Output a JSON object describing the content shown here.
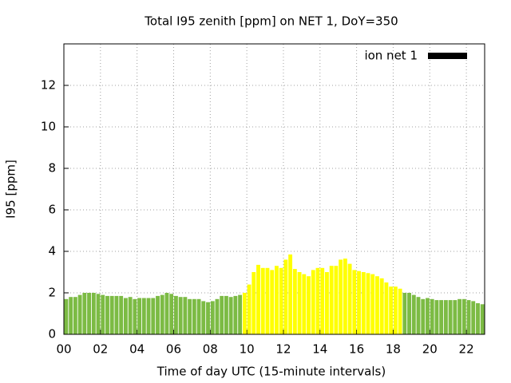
{
  "chart_data": {
    "type": "bar",
    "title": "Total I95 zenith [ppm] on NET 1, DoY=350",
    "x_label": "Time of day UTC (15-minute intervals)",
    "y_label": "I95 [ppm]",
    "series": [
      {
        "name": "ion net 1",
        "color": "#000000",
        "x": [
          0,
          0.25,
          0.5,
          0.75,
          1,
          1.25,
          1.5,
          1.75,
          2,
          2.25,
          2.5,
          2.75,
          3,
          3.25,
          3.5,
          3.75,
          4,
          4.25,
          4.5,
          4.75,
          5,
          5.25,
          5.5,
          5.75,
          6,
          6.25,
          6.5,
          6.75,
          7,
          7.25,
          7.5,
          7.75,
          8,
          8.25,
          8.5,
          8.75,
          9,
          9.25,
          9.5,
          9.75,
          10,
          10.25,
          10.5,
          10.75,
          11,
          11.25,
          11.5,
          11.75,
          12,
          12.25,
          12.5,
          12.75,
          13,
          13.25,
          13.5,
          13.75,
          14,
          14.25,
          14.5,
          14.75,
          15,
          15.25,
          15.5,
          15.75,
          16,
          16.25,
          16.5,
          16.75,
          17,
          17.25,
          17.5,
          17.75,
          18,
          18.25,
          18.5,
          18.75,
          19,
          19.25,
          19.5,
          19.75,
          20,
          20.25,
          20.5,
          20.75,
          21,
          21.25,
          21.5,
          21.75,
          22,
          22.25,
          22.5,
          22.75
        ],
        "values": [
          1.7,
          1.8,
          1.8,
          1.9,
          2.0,
          2.0,
          2.0,
          1.95,
          1.9,
          1.85,
          1.85,
          1.85,
          1.85,
          1.75,
          1.8,
          1.7,
          1.75,
          1.75,
          1.75,
          1.75,
          1.85,
          1.9,
          2.0,
          1.95,
          1.85,
          1.8,
          1.8,
          1.7,
          1.7,
          1.7,
          1.6,
          1.55,
          1.6,
          1.7,
          1.85,
          1.85,
          1.8,
          1.85,
          1.9,
          2.0,
          2.4,
          3.0,
          3.35,
          3.2,
          3.2,
          3.1,
          3.3,
          3.2,
          3.6,
          3.85,
          3.15,
          3.0,
          2.9,
          2.8,
          3.1,
          3.2,
          3.2,
          3.0,
          3.3,
          3.3,
          3.6,
          3.65,
          3.4,
          3.1,
          3.05,
          3.0,
          2.95,
          2.9,
          2.8,
          2.7,
          2.5,
          2.3,
          2.3,
          2.2,
          2.0,
          2.0,
          1.9,
          1.8,
          1.7,
          1.75,
          1.7,
          1.65,
          1.65,
          1.65,
          1.65,
          1.65,
          1.7,
          1.7,
          1.65,
          1.6,
          1.5,
          1.45
        ],
        "colors": [
          "#7cbb44",
          "#7cbb44",
          "#7cbb44",
          "#7cbb44",
          "#7cbb44",
          "#7cbb44",
          "#7cbb44",
          "#7cbb44",
          "#7cbb44",
          "#7cbb44",
          "#7cbb44",
          "#7cbb44",
          "#7cbb44",
          "#7cbb44",
          "#7cbb44",
          "#7cbb44",
          "#7cbb44",
          "#7cbb44",
          "#7cbb44",
          "#7cbb44",
          "#7cbb44",
          "#7cbb44",
          "#7cbb44",
          "#7cbb44",
          "#7cbb44",
          "#7cbb44",
          "#7cbb44",
          "#7cbb44",
          "#7cbb44",
          "#7cbb44",
          "#7cbb44",
          "#7cbb44",
          "#7cbb44",
          "#7cbb44",
          "#7cbb44",
          "#7cbb44",
          "#7cbb44",
          "#7cbb44",
          "#7cbb44",
          "#ffff00",
          "#ffff00",
          "#ffff00",
          "#ffff00",
          "#ffff00",
          "#ffff00",
          "#ffff00",
          "#ffff00",
          "#ffff00",
          "#ffff00",
          "#ffff00",
          "#ffff00",
          "#ffff00",
          "#ffff00",
          "#ffff00",
          "#ffff00",
          "#ffff00",
          "#ffff00",
          "#ffff00",
          "#ffff00",
          "#ffff00",
          "#ffff00",
          "#ffff00",
          "#ffff00",
          "#ffff00",
          "#ffff00",
          "#ffff00",
          "#ffff00",
          "#ffff00",
          "#ffff00",
          "#ffff00",
          "#ffff00",
          "#ffff00",
          "#ffff00",
          "#ffff00",
          "#7cbb44",
          "#7cbb44",
          "#7cbb44",
          "#7cbb44",
          "#7cbb44",
          "#7cbb44",
          "#7cbb44",
          "#7cbb44",
          "#7cbb44",
          "#7cbb44",
          "#7cbb44",
          "#7cbb44",
          "#7cbb44",
          "#7cbb44",
          "#7cbb44",
          "#7cbb44",
          "#7cbb44",
          "#7cbb44"
        ]
      }
    ],
    "xlim": [
      0,
      23
    ],
    "xticks": [
      {
        "value": 0,
        "label": "00"
      },
      {
        "value": 2,
        "label": "02"
      },
      {
        "value": 4,
        "label": "04"
      },
      {
        "value": 6,
        "label": "06"
      },
      {
        "value": 8,
        "label": "08"
      },
      10,
      12,
      14,
      16,
      18,
      20,
      22
    ],
    "ylim": [
      0,
      14
    ],
    "yticks": [
      0,
      2,
      4,
      6,
      8,
      10,
      12
    ],
    "grid": true,
    "legend": "top-right"
  }
}
